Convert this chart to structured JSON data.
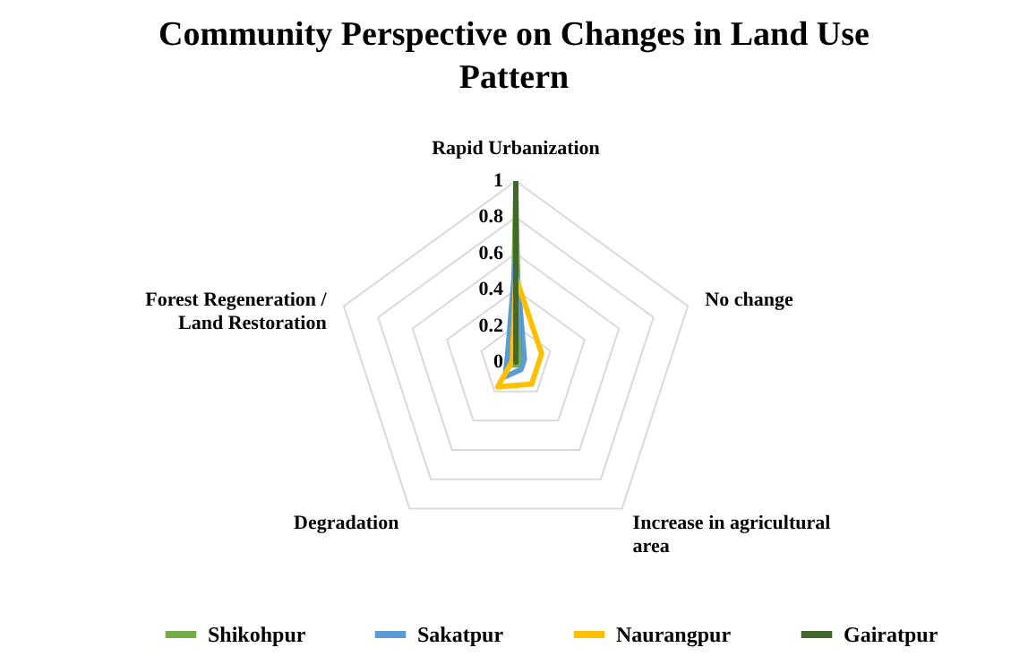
{
  "chart_data": {
    "type": "radar",
    "title": "Community Perspective on Changes in Land Use Pattern",
    "categories": [
      "Rapid Urbanization",
      "No change",
      "Increase in agricultural area",
      "Degradation",
      "Forest Regeneration / Land Restoration"
    ],
    "series": [
      {
        "name": "Shikohpur",
        "color": "#70ad47",
        "values": [
          0.95,
          0.02,
          0.02,
          0.02,
          0.02
        ]
      },
      {
        "name": "Sakatpur",
        "color": "#5b9bd5",
        "values": [
          0.58,
          0.05,
          0.05,
          0.1,
          0.05
        ]
      },
      {
        "name": "Naurangpur",
        "color": "#ffc000",
        "values": [
          0.47,
          0.15,
          0.15,
          0.17,
          0.02
        ]
      },
      {
        "name": "Gairatpur",
        "color": "#43682b",
        "values": [
          1,
          0,
          0,
          0,
          0
        ]
      }
    ],
    "ylim": [
      0,
      1
    ],
    "yticks": [
      0,
      0.2,
      0.4,
      0.6,
      0.8,
      1
    ],
    "grid": true,
    "legend": "bottom"
  }
}
